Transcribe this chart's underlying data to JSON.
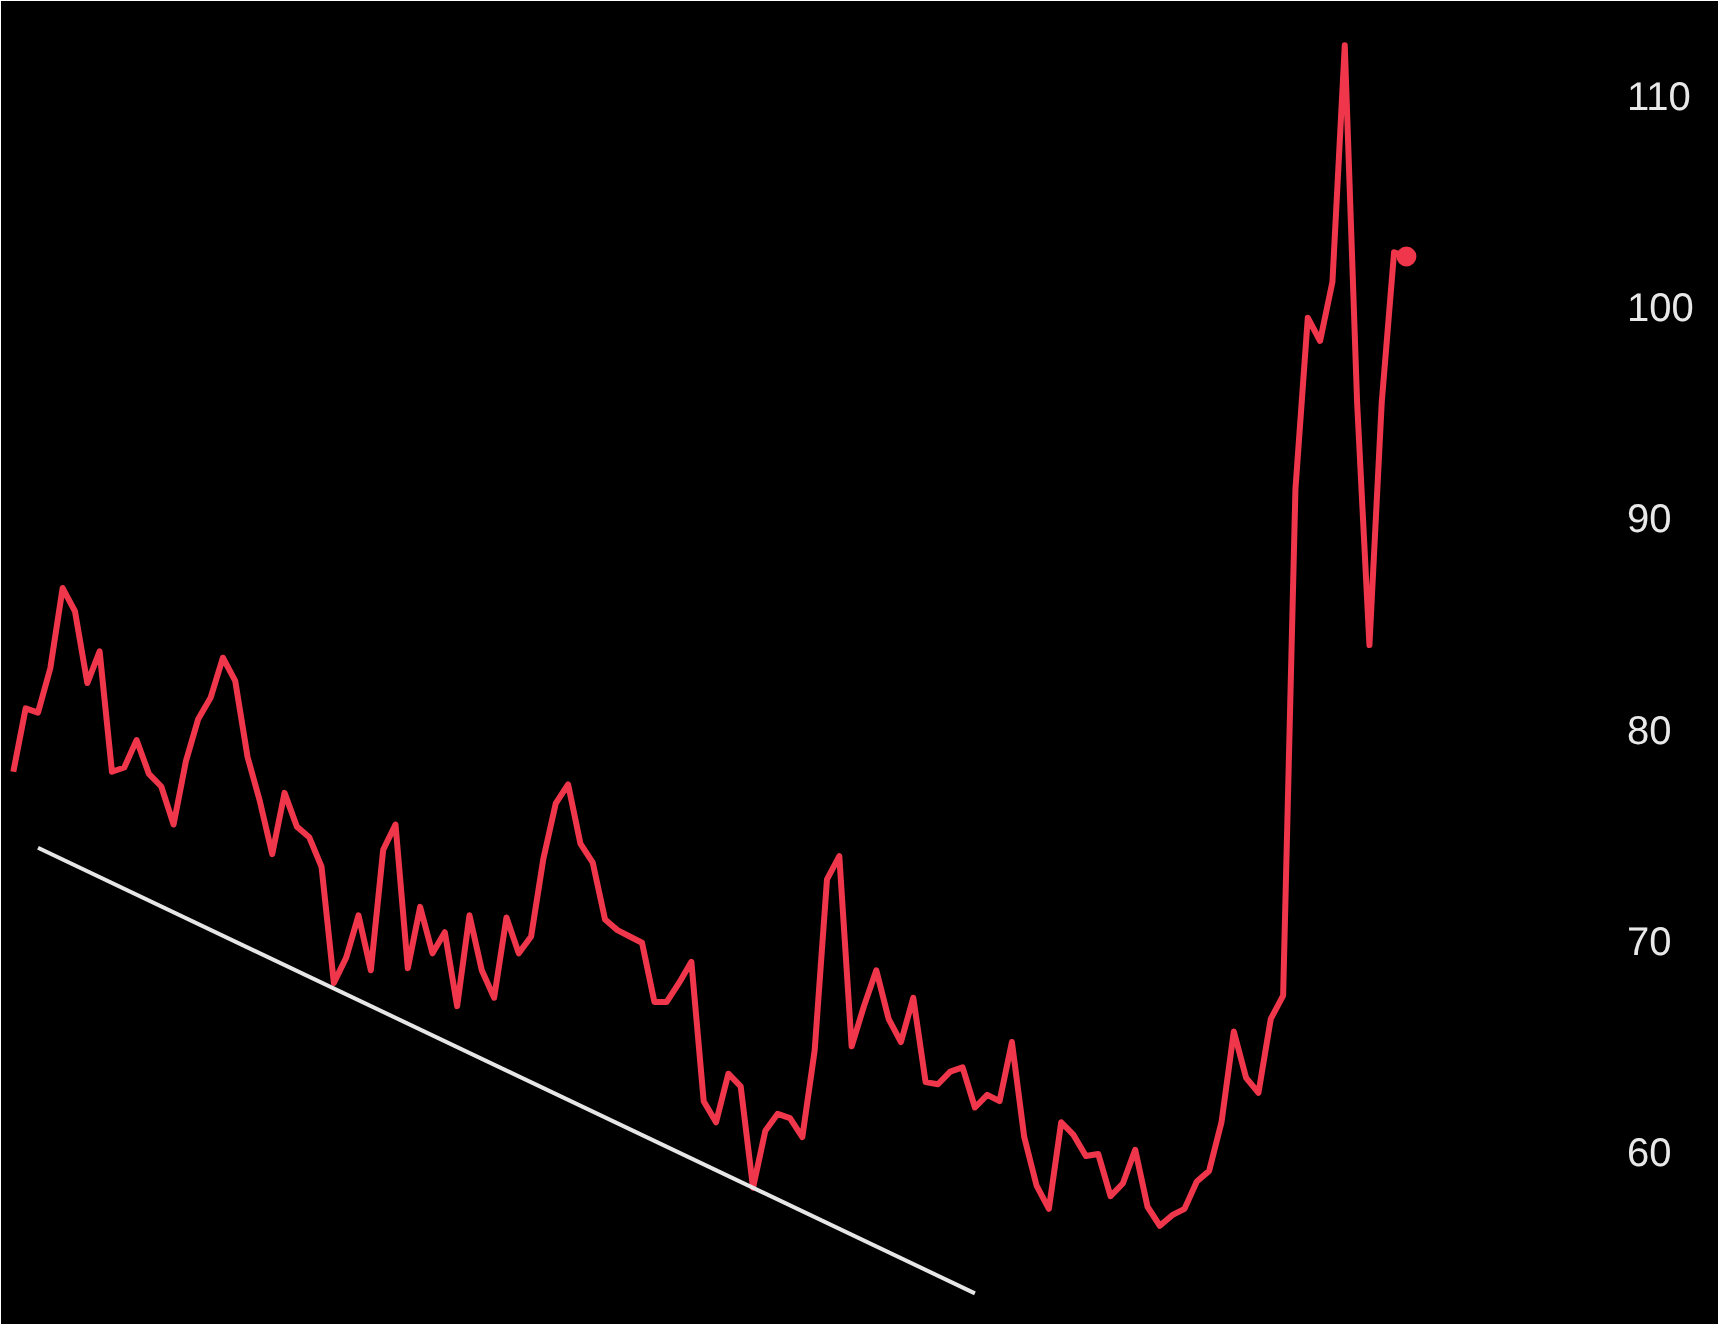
{
  "chart_data": {
    "type": "line",
    "categories": [
      null,
      null,
      null,
      null,
      null,
      null,
      null,
      null,
      null,
      null,
      null,
      null,
      null,
      null,
      null,
      null,
      null,
      null,
      null,
      null,
      null,
      null,
      null,
      null,
      null,
      null,
      null,
      null,
      null,
      null,
      null,
      null,
      null,
      null,
      null,
      null,
      null,
      null,
      null,
      null,
      null,
      null,
      null,
      null,
      null,
      null,
      null,
      null,
      null,
      null,
      null,
      null,
      null,
      null,
      null,
      null,
      null,
      null,
      null,
      null,
      null,
      null,
      null,
      null,
      null,
      null,
      null,
      null,
      null,
      null,
      null,
      null,
      null,
      null,
      null,
      null,
      null,
      null,
      null,
      null,
      null,
      null,
      null,
      null,
      null,
      null,
      null,
      null,
      null,
      null,
      null,
      null,
      null,
      null,
      null,
      null,
      null,
      null,
      null,
      null,
      null,
      null,
      null,
      null,
      null,
      null,
      null,
      null,
      null,
      null,
      null,
      null,
      null,
      null
    ],
    "series": [
      {
        "color": "#f0364a",
        "values": [
          78.0,
          81.0,
          80.8,
          82.9,
          86.7,
          85.6,
          82.2,
          83.7,
          78.0,
          78.2,
          79.5,
          77.9,
          77.3,
          75.5,
          78.5,
          80.5,
          81.5,
          83.4,
          82.3,
          78.7,
          76.6,
          74.1,
          77.0,
          75.4,
          74.9,
          73.5,
          68.0,
          69.2,
          71.2,
          68.6,
          74.3,
          75.5,
          68.7,
          71.6,
          69.4,
          70.4,
          66.9,
          71.2,
          68.6,
          67.3,
          71.1,
          69.4,
          70.2,
          73.9,
          76.5,
          77.4,
          74.6,
          73.7,
          71.0,
          70.5,
          70.2,
          69.9,
          67.1,
          67.1,
          68.0,
          69.0,
          62.4,
          61.4,
          63.7,
          63.1,
          58.3,
          61.0,
          61.8,
          61.6,
          60.7,
          64.8,
          72.9,
          74.0,
          65.0,
          66.9,
          68.6,
          66.3,
          65.2,
          67.3,
          63.3,
          63.2,
          63.8,
          64.0,
          62.1,
          62.7,
          62.4,
          65.2,
          60.7,
          58.4,
          57.3,
          61.4,
          60.8,
          59.8,
          59.9,
          57.9,
          58.5,
          60.1,
          57.4,
          56.5,
          57.0,
          57.3,
          58.6,
          59.1,
          61.4,
          65.7,
          63.5,
          62.8,
          66.3,
          67.4,
          91.4,
          99.5,
          98.4,
          101.2,
          112.4,
          95.5,
          84.0,
          95.5,
          102.6,
          102.4
        ]
      },
      {
        "type": "line",
        "color": "#e6e6e6",
        "values": [
          null,
          null,
          74.4,
          null,
          null,
          null,
          null,
          null,
          null,
          null,
          null,
          null,
          null,
          null,
          null,
          null,
          null,
          null,
          null,
          null,
          null,
          null,
          null,
          null,
          null,
          null,
          null,
          null,
          null,
          null,
          null,
          null,
          null,
          null,
          null,
          null,
          null,
          null,
          null,
          null,
          null,
          null,
          null,
          null,
          null,
          null,
          null,
          null,
          null,
          null,
          null,
          null,
          null,
          null,
          null,
          null,
          null,
          null,
          null,
          null,
          null,
          null,
          null,
          null,
          null,
          null,
          null,
          null,
          null,
          null,
          null,
          null,
          null,
          null,
          null,
          null,
          null,
          null,
          53.3,
          null,
          null,
          null,
          null,
          null,
          null,
          null,
          null,
          null,
          null,
          null,
          null,
          null,
          null,
          null,
          null,
          null,
          null,
          null,
          null,
          null,
          null,
          null,
          null,
          null,
          null,
          null,
          null,
          null,
          null,
          null,
          null,
          null,
          null,
          null
        ]
      }
    ],
    "ylim": [
      51.8,
      114.5
    ],
    "yticks": [
      60,
      70,
      80,
      90,
      100,
      110
    ],
    "grid": false,
    "tick_labels": "y"
  }
}
